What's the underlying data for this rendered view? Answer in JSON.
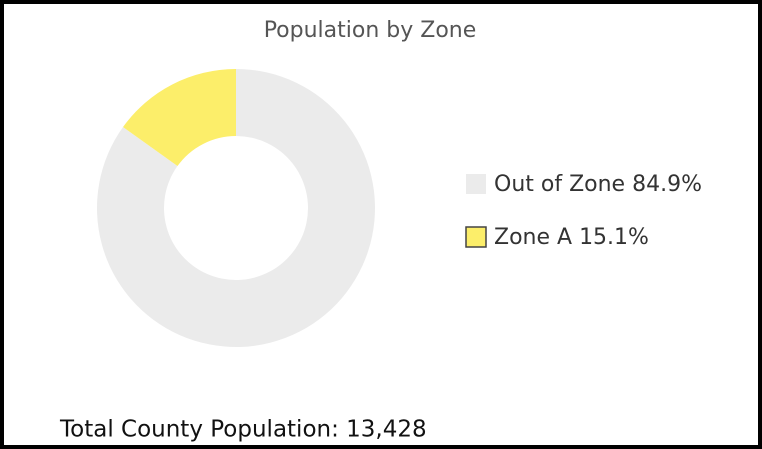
{
  "chart_data": {
    "type": "donut",
    "title": "Population by Zone",
    "categories": [
      "Out of Zone",
      "Zone A"
    ],
    "values": [
      84.9,
      15.1
    ],
    "value_labels": [
      "84.9%",
      "15.1%"
    ],
    "colors": [
      "#ebebeb",
      "#fcee6a"
    ],
    "legend": "right",
    "annotation": "Total County Population: 13,428"
  }
}
